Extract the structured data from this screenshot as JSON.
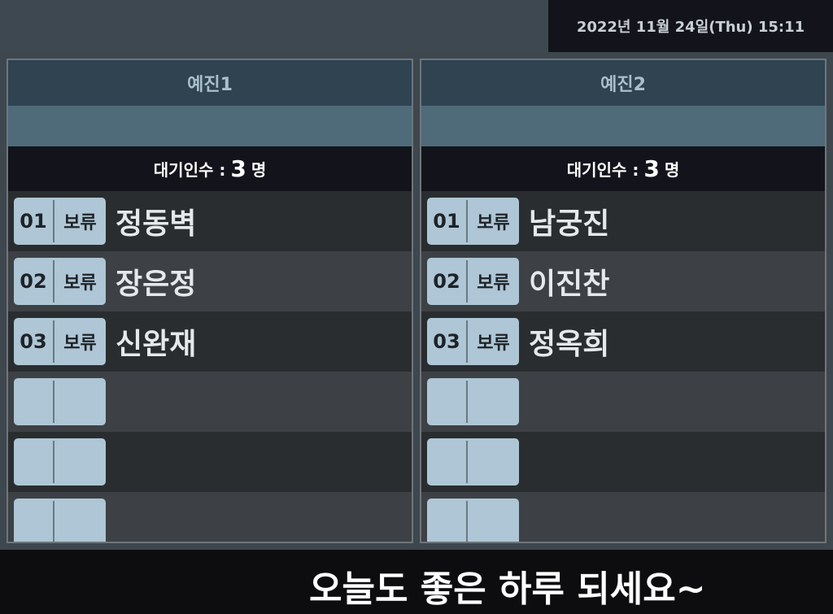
{
  "header": {
    "datetime": "2022년 11월 24일(Thu) 15:11"
  },
  "panels": [
    {
      "title": "예진1",
      "wait_label": "대기인수 :",
      "wait_count": "3",
      "wait_unit": "명",
      "rows": [
        {
          "num": "01",
          "status": "보류",
          "name": "정동벽"
        },
        {
          "num": "02",
          "status": "보류",
          "name": "장은정"
        },
        {
          "num": "03",
          "status": "보류",
          "name": "신완재"
        },
        {
          "num": "",
          "status": "",
          "name": ""
        },
        {
          "num": "",
          "status": "",
          "name": ""
        },
        {
          "num": "",
          "status": "",
          "name": ""
        }
      ]
    },
    {
      "title": "예진2",
      "wait_label": "대기인수 :",
      "wait_count": "3",
      "wait_unit": "명",
      "rows": [
        {
          "num": "01",
          "status": "보류",
          "name": "남궁진"
        },
        {
          "num": "02",
          "status": "보류",
          "name": "이진찬"
        },
        {
          "num": "03",
          "status": "보류",
          "name": "정옥희"
        },
        {
          "num": "",
          "status": "",
          "name": ""
        },
        {
          "num": "",
          "status": "",
          "name": ""
        },
        {
          "num": "",
          "status": "",
          "name": ""
        }
      ]
    }
  ],
  "footer": {
    "message": "오늘도 좋은 하루 되세요~"
  }
}
